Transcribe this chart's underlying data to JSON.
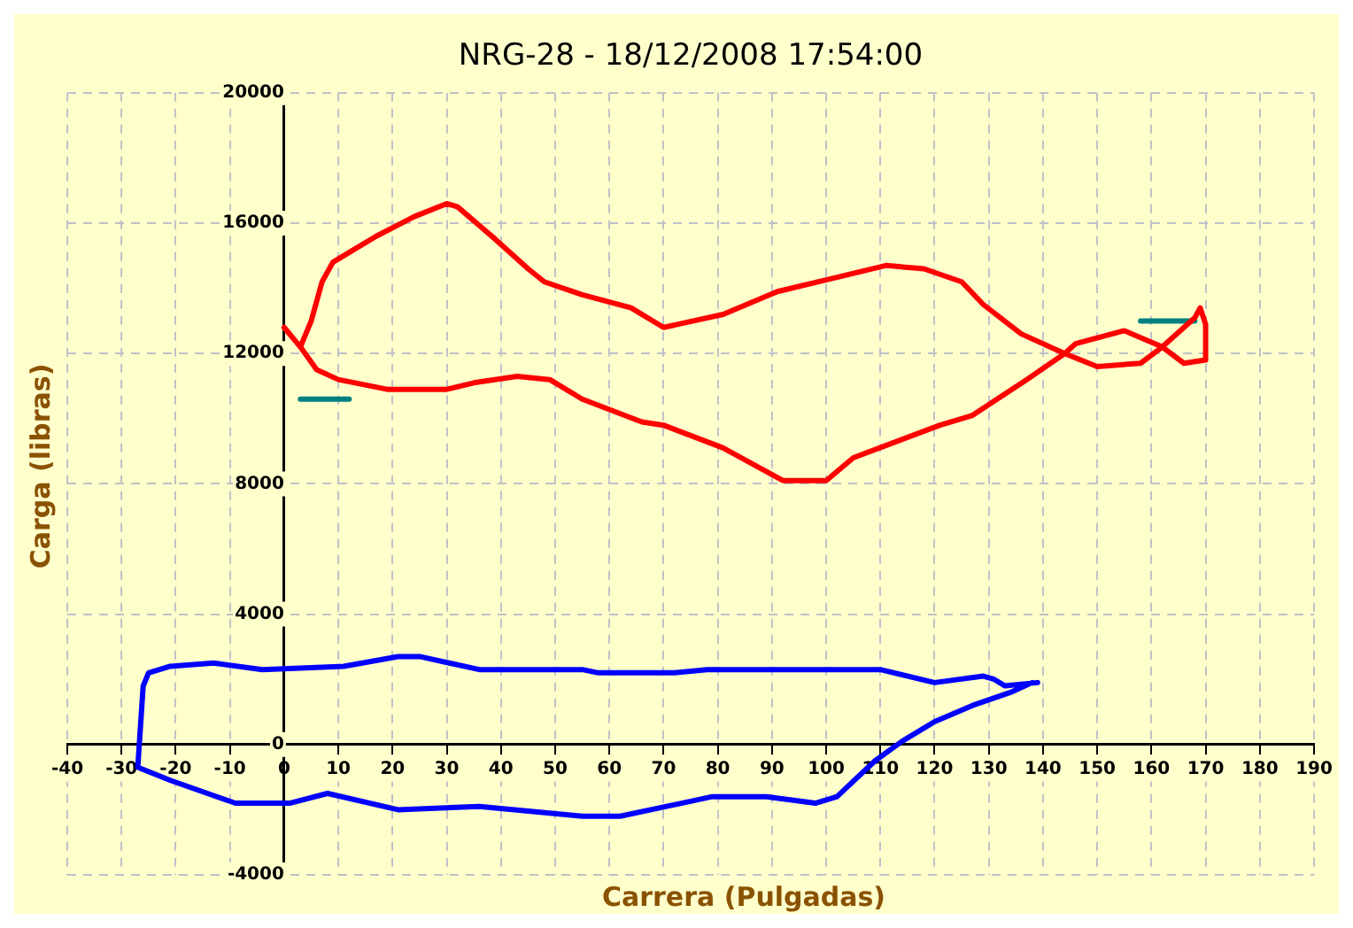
{
  "chart_data": {
    "type": "line",
    "title": "NRG-28 - 18/12/2008 17:54:00",
    "xlabel": "Carrera (Pulgadas)",
    "ylabel": "Carga (libras)",
    "xlim": [
      -40,
      190
    ],
    "xticks": [
      -40,
      -30,
      -20,
      -10,
      0,
      10,
      20,
      30,
      40,
      50,
      60,
      70,
      80,
      90,
      100,
      110,
      120,
      130,
      140,
      150,
      160,
      170,
      180,
      190
    ],
    "ylim": [
      -4000,
      20000
    ],
    "yticks": [
      -4000,
      0,
      4000,
      8000,
      12000,
      16000,
      20000
    ],
    "grid": true,
    "legend": false,
    "marker": "none",
    "line_style": "solid",
    "series": [
      {
        "color": "#ff0000",
        "x": [
          0,
          3,
          6,
          10,
          19,
          30,
          35,
          43,
          49,
          55,
          66,
          70,
          81,
          92,
          100,
          105,
          121,
          127,
          137,
          144,
          150,
          158,
          162,
          168,
          169,
          170,
          170,
          166,
          162,
          155,
          146,
          144,
          136,
          129,
          125,
          118,
          111,
          101,
          91,
          81,
          70,
          64,
          55,
          48,
          45,
          39,
          32,
          30,
          24,
          17,
          13,
          9,
          7,
          5,
          3
        ],
        "values": [
          12800,
          12200,
          11500,
          11200,
          10900,
          10900,
          11100,
          11300,
          11200,
          10600,
          9900,
          9800,
          9100,
          8100,
          8100,
          8800,
          9800,
          10100,
          11200,
          12000,
          11600,
          11700,
          12200,
          13100,
          13400,
          12900,
          11800,
          11700,
          12200,
          12700,
          12300,
          12000,
          12600,
          13500,
          14200,
          14600,
          14700,
          14300,
          13900,
          13200,
          12800,
          13400,
          13800,
          14200,
          14600,
          15500,
          16500,
          16600,
          16200,
          15600,
          15200,
          14800,
          14200,
          13000,
          12200
        ]
      },
      {
        "color": "#0000ff",
        "x": [
          139,
          133,
          131,
          129,
          120,
          110,
          102,
          86,
          78,
          72,
          58,
          55,
          36,
          25,
          21,
          11,
          -4,
          -13,
          -21,
          -25,
          -26,
          -27,
          -21,
          -9,
          1,
          8,
          21,
          36,
          55,
          62,
          79,
          89,
          98,
          102,
          109,
          114,
          120,
          127,
          134,
          138
        ],
        "values": [
          1900,
          1800,
          2000,
          2100,
          1900,
          2300,
          2300,
          2300,
          2300,
          2200,
          2200,
          2300,
          2300,
          2700,
          2700,
          2400,
          2300,
          2500,
          2400,
          2200,
          1800,
          -700,
          -1100,
          -1800,
          -1800,
          -1500,
          -2000,
          -1900,
          -2200,
          -2200,
          -1600,
          -1600,
          -1800,
          -1600,
          -500,
          100,
          700,
          1200,
          1600,
          1900
        ]
      },
      {
        "color": "#008080",
        "x": [
          3,
          12
        ],
        "values": [
          10600,
          10600
        ]
      },
      {
        "color": "#008080",
        "x": [
          158,
          168
        ],
        "values": [
          13000,
          13000
        ]
      }
    ]
  }
}
